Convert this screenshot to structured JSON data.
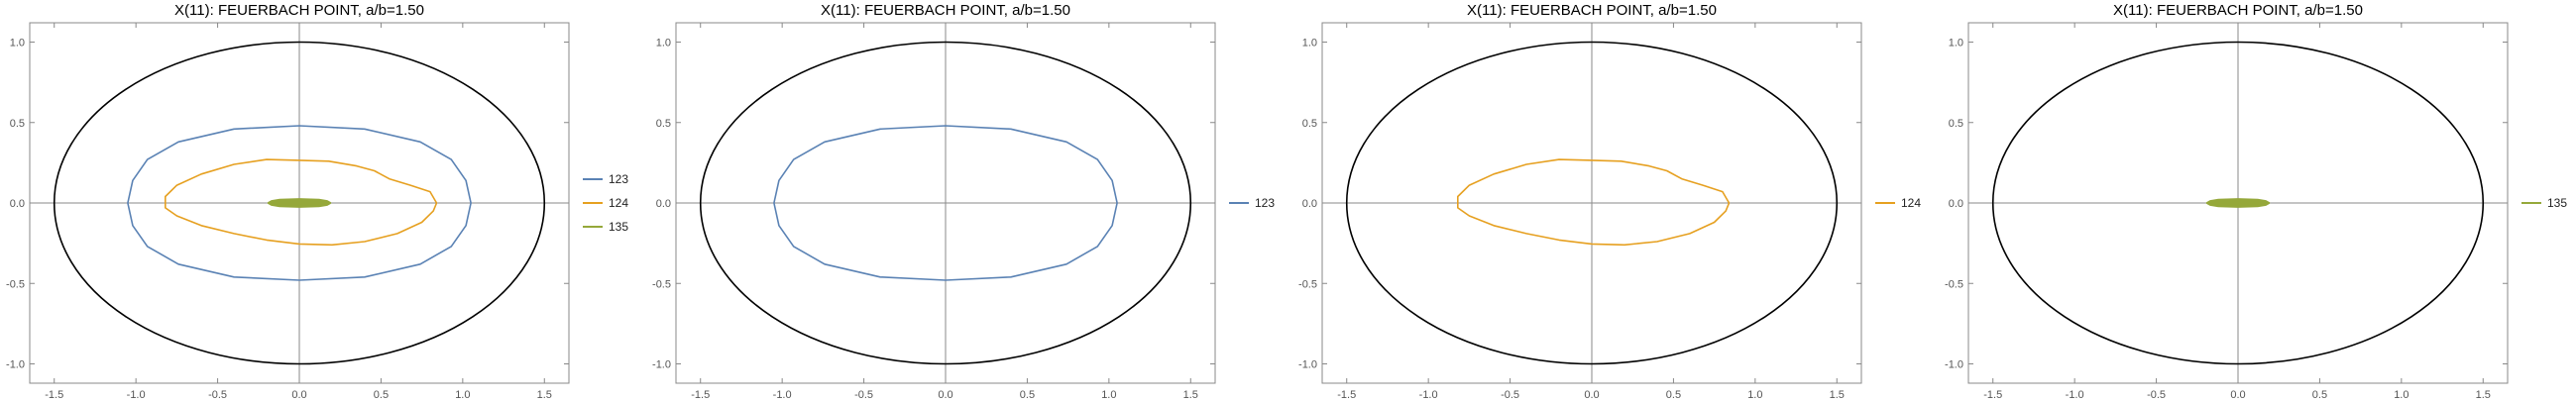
{
  "chart_data": [
    {
      "type": "line",
      "title": "X(11): FEUERBACH POINT, a/b=1.50",
      "xlim": [
        -1.65,
        1.65
      ],
      "ylim": [
        -1.12,
        1.12
      ],
      "xticks": [
        "-1.5",
        "-1.0",
        "-0.5",
        "0.0",
        "0.5",
        "1.0",
        "1.5"
      ],
      "yticks": [
        "-1.0",
        "-0.5",
        "0.0",
        "0.5",
        "1.0"
      ],
      "ellipse": {
        "a": 1.5,
        "b": 1.0,
        "color": "#000000"
      },
      "legend_placement": "right",
      "series": [
        {
          "name": "123",
          "color": "#5a82b4",
          "points": [
            [
              1.05,
              0
            ],
            [
              1.02,
              0.14
            ],
            [
              0.93,
              0.27
            ],
            [
              0.74,
              0.38
            ],
            [
              0.4,
              0.46
            ],
            [
              0,
              0.48
            ],
            [
              -0.4,
              0.46
            ],
            [
              -0.74,
              0.38
            ],
            [
              -0.93,
              0.27
            ],
            [
              -1.02,
              0.14
            ],
            [
              -1.05,
              0
            ],
            [
              -1.02,
              -0.14
            ],
            [
              -0.93,
              -0.27
            ],
            [
              -0.74,
              -0.38
            ],
            [
              -0.4,
              -0.46
            ],
            [
              0,
              -0.48
            ],
            [
              0.4,
              -0.46
            ],
            [
              0.74,
              -0.38
            ],
            [
              0.93,
              -0.27
            ],
            [
              1.02,
              -0.14
            ],
            [
              1.05,
              0
            ]
          ]
        },
        {
          "name": "124",
          "color": "#e6a020",
          "points": [
            [
              0.84,
              0
            ],
            [
              0.8,
              0.07
            ],
            [
              0.68,
              0.11
            ],
            [
              0.55,
              0.15
            ],
            [
              0.46,
              0.2
            ],
            [
              0.35,
              0.23
            ],
            [
              0.18,
              0.26
            ],
            [
              0,
              0.265
            ],
            [
              -0.2,
              0.27
            ],
            [
              -0.4,
              0.24
            ],
            [
              -0.6,
              0.18
            ],
            [
              -0.75,
              0.11
            ],
            [
              -0.82,
              0.04
            ],
            [
              -0.82,
              -0.03
            ],
            [
              -0.75,
              -0.08
            ],
            [
              -0.6,
              -0.14
            ],
            [
              -0.4,
              -0.19
            ],
            [
              -0.2,
              -0.23
            ],
            [
              0,
              -0.255
            ],
            [
              0.2,
              -0.26
            ],
            [
              0.4,
              -0.24
            ],
            [
              0.6,
              -0.19
            ],
            [
              0.75,
              -0.12
            ],
            [
              0.82,
              -0.05
            ],
            [
              0.84,
              0
            ]
          ]
        },
        {
          "name": "135",
          "color": "#95a83a",
          "points": [
            [
              0.19,
              0
            ],
            [
              0.17,
              0.012
            ],
            [
              0.12,
              0.02
            ],
            [
              0,
              0.024
            ],
            [
              -0.12,
              0.02
            ],
            [
              -0.17,
              0.012
            ],
            [
              -0.19,
              0
            ],
            [
              -0.17,
              -0.012
            ],
            [
              -0.12,
              -0.02
            ],
            [
              0,
              -0.024
            ],
            [
              0.12,
              -0.02
            ],
            [
              0.17,
              -0.012
            ],
            [
              0.19,
              0
            ]
          ]
        }
      ]
    },
    {
      "type": "line",
      "title": "X(11): FEUERBACH POINT, a/b=1.50",
      "xlim": [
        -1.65,
        1.65
      ],
      "ylim": [
        -1.12,
        1.12
      ],
      "xticks": [
        "-1.5",
        "-1.0",
        "-0.5",
        "0.0",
        "0.5",
        "1.0",
        "1.5"
      ],
      "yticks": [
        "-1.0",
        "-0.5",
        "0.0",
        "0.5",
        "1.0"
      ],
      "ellipse": {
        "a": 1.5,
        "b": 1.0,
        "color": "#000000"
      },
      "legend_placement": "right",
      "series": [
        {
          "name": "123",
          "color": "#5a82b4",
          "points": [
            [
              1.05,
              0
            ],
            [
              1.02,
              0.14
            ],
            [
              0.93,
              0.27
            ],
            [
              0.74,
              0.38
            ],
            [
              0.4,
              0.46
            ],
            [
              0,
              0.48
            ],
            [
              -0.4,
              0.46
            ],
            [
              -0.74,
              0.38
            ],
            [
              -0.93,
              0.27
            ],
            [
              -1.02,
              0.14
            ],
            [
              -1.05,
              0
            ],
            [
              -1.02,
              -0.14
            ],
            [
              -0.93,
              -0.27
            ],
            [
              -0.74,
              -0.38
            ],
            [
              -0.4,
              -0.46
            ],
            [
              0,
              -0.48
            ],
            [
              0.4,
              -0.46
            ],
            [
              0.74,
              -0.38
            ],
            [
              0.93,
              -0.27
            ],
            [
              1.02,
              -0.14
            ],
            [
              1.05,
              0
            ]
          ]
        }
      ]
    },
    {
      "type": "line",
      "title": "X(11): FEUERBACH POINT, a/b=1.50",
      "xlim": [
        -1.65,
        1.65
      ],
      "ylim": [
        -1.12,
        1.12
      ],
      "xticks": [
        "-1.5",
        "-1.0",
        "-0.5",
        "0.0",
        "0.5",
        "1.0",
        "1.5"
      ],
      "yticks": [
        "-1.0",
        "-0.5",
        "0.0",
        "0.5",
        "1.0"
      ],
      "ellipse": {
        "a": 1.5,
        "b": 1.0,
        "color": "#000000"
      },
      "legend_placement": "right",
      "series": [
        {
          "name": "124",
          "color": "#e6a020",
          "points": [
            [
              0.84,
              0
            ],
            [
              0.8,
              0.07
            ],
            [
              0.68,
              0.11
            ],
            [
              0.55,
              0.15
            ],
            [
              0.46,
              0.2
            ],
            [
              0.35,
              0.23
            ],
            [
              0.18,
              0.26
            ],
            [
              0,
              0.265
            ],
            [
              -0.2,
              0.27
            ],
            [
              -0.4,
              0.24
            ],
            [
              -0.6,
              0.18
            ],
            [
              -0.75,
              0.11
            ],
            [
              -0.82,
              0.04
            ],
            [
              -0.82,
              -0.03
            ],
            [
              -0.75,
              -0.08
            ],
            [
              -0.6,
              -0.14
            ],
            [
              -0.4,
              -0.19
            ],
            [
              -0.2,
              -0.23
            ],
            [
              0,
              -0.255
            ],
            [
              0.2,
              -0.26
            ],
            [
              0.4,
              -0.24
            ],
            [
              0.6,
              -0.19
            ],
            [
              0.75,
              -0.12
            ],
            [
              0.82,
              -0.05
            ],
            [
              0.84,
              0
            ]
          ]
        }
      ]
    },
    {
      "type": "line",
      "title": "X(11): FEUERBACH POINT, a/b=1.50",
      "xlim": [
        -1.65,
        1.65
      ],
      "ylim": [
        -1.12,
        1.12
      ],
      "xticks": [
        "-1.5",
        "-1.0",
        "-0.5",
        "0.0",
        "0.5",
        "1.0",
        "1.5"
      ],
      "yticks": [
        "-1.0",
        "-0.5",
        "0.0",
        "0.5",
        "1.0"
      ],
      "ellipse": {
        "a": 1.5,
        "b": 1.0,
        "color": "#000000"
      },
      "legend_placement": "right",
      "series": [
        {
          "name": "135",
          "color": "#95a83a",
          "points": [
            [
              0.19,
              0
            ],
            [
              0.17,
              0.012
            ],
            [
              0.12,
              0.02
            ],
            [
              0,
              0.024
            ],
            [
              -0.12,
              0.02
            ],
            [
              -0.17,
              0.012
            ],
            [
              -0.19,
              0
            ],
            [
              -0.17,
              -0.012
            ],
            [
              -0.12,
              -0.02
            ],
            [
              0,
              -0.024
            ],
            [
              0.12,
              -0.02
            ],
            [
              0.17,
              -0.012
            ],
            [
              0.19,
              0
            ]
          ]
        }
      ]
    }
  ]
}
